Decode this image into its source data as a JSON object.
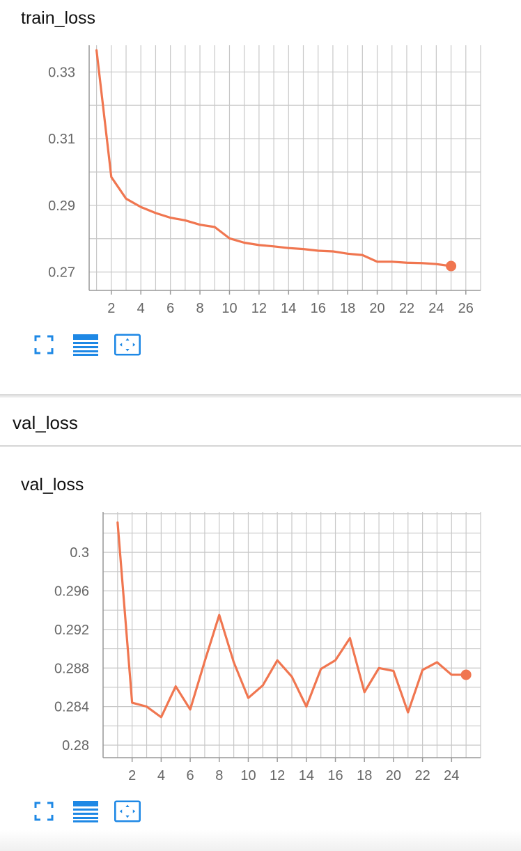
{
  "section": {
    "title": "val_loss"
  },
  "toolbar": {
    "icons": [
      "fullscreen-icon",
      "data-table-icon",
      "fit-domain-icon"
    ]
  },
  "colors": {
    "line": "#f07650",
    "grid": "#c8c8c8",
    "axis": "#999999",
    "icon": "#1e88e5"
  },
  "chart_data": [
    {
      "type": "line",
      "title": "train_loss",
      "xlabel": "",
      "ylabel": "",
      "x": [
        1,
        2,
        3,
        4,
        5,
        6,
        7,
        8,
        9,
        10,
        11,
        12,
        13,
        14,
        15,
        16,
        17,
        18,
        19,
        20,
        21,
        22,
        23,
        24,
        25
      ],
      "series": [
        {
          "values": [
            0.3365,
            0.2985,
            0.292,
            0.2895,
            0.2877,
            0.2863,
            0.2855,
            0.2842,
            0.2835,
            0.2801,
            0.2788,
            0.2781,
            0.2777,
            0.2772,
            0.2769,
            0.2764,
            0.2762,
            0.2755,
            0.2751,
            0.2731,
            0.2731,
            0.2728,
            0.2727,
            0.2724,
            0.2718
          ]
        }
      ],
      "xticks": [
        2,
        4,
        6,
        8,
        10,
        12,
        14,
        16,
        18,
        20,
        22,
        24,
        26
      ],
      "yticks": [
        0.27,
        0.29,
        0.31,
        0.33
      ],
      "ytick_labels": [
        "0.27",
        "0.29",
        "0.31",
        "0.33"
      ],
      "xlim": [
        0.5,
        27.0
      ],
      "ylim": [
        0.2645,
        0.338
      ],
      "grid": true,
      "legend": "none"
    },
    {
      "type": "line",
      "title": "val_loss",
      "xlabel": "",
      "ylabel": "",
      "x": [
        1,
        2,
        3,
        4,
        5,
        6,
        7,
        8,
        9,
        10,
        11,
        12,
        13,
        14,
        15,
        16,
        17,
        18,
        19,
        20,
        21,
        22,
        23,
        24,
        25
      ],
      "series": [
        {
          "values": [
            0.3031,
            0.2844,
            0.284,
            0.2829,
            0.2861,
            0.2837,
            0.2887,
            0.2935,
            0.2886,
            0.2849,
            0.2862,
            0.2888,
            0.2871,
            0.284,
            0.2879,
            0.2888,
            0.2911,
            0.2855,
            0.288,
            0.2877,
            0.2834,
            0.2878,
            0.2886,
            0.2873,
            0.2873
          ]
        }
      ],
      "xticks": [
        2,
        4,
        6,
        8,
        10,
        12,
        14,
        16,
        18,
        20,
        22,
        24
      ],
      "yticks": [
        0.28,
        0.284,
        0.288,
        0.292,
        0.296,
        0.3
      ],
      "ytick_labels": [
        "0.28",
        "0.284",
        "0.288",
        "0.292",
        "0.296",
        "0.3"
      ],
      "xlim": [
        0.0,
        26.0
      ],
      "ylim": [
        0.2787,
        0.3042
      ],
      "grid": true,
      "legend": "none"
    }
  ]
}
